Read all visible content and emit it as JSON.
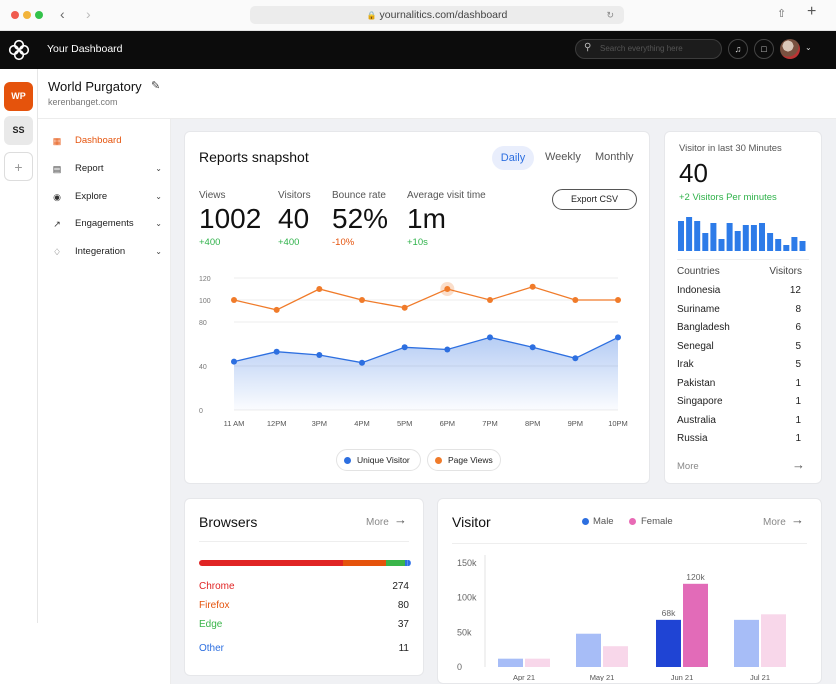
{
  "browser": {
    "url": "yournalitics.com/dashboard"
  },
  "app": {
    "title": "Your Dashboard",
    "search_placeholder": "Search everything here"
  },
  "workspaces": [
    {
      "label": "WP"
    },
    {
      "label": "SS"
    },
    {
      "label": "+"
    }
  ],
  "site": {
    "name": "World Purgatory",
    "domain": "kerenbanget.com"
  },
  "sidebar": {
    "items": [
      {
        "label": "Dashboard",
        "icon": "grid-icon",
        "active": true
      },
      {
        "label": "Report",
        "icon": "report-icon"
      },
      {
        "label": "Explore",
        "icon": "compass-icon"
      },
      {
        "label": "Engagements",
        "icon": "chart-line-icon"
      },
      {
        "label": "Integeration",
        "icon": "layers-icon"
      }
    ]
  },
  "snapshot": {
    "title": "Reports snapshot",
    "tabs": [
      "Daily",
      "Weekly",
      "Monthly"
    ],
    "active_tab": "Daily",
    "export_label": "Export CSV",
    "stats": [
      {
        "label": "Views",
        "value": "1002",
        "delta": "+400",
        "trend": "up"
      },
      {
        "label": "Visitors",
        "value": "40",
        "delta": "+400",
        "trend": "up"
      },
      {
        "label": "Bounce rate",
        "value": "52%",
        "delta": "-10%",
        "trend": "down"
      },
      {
        "label": "Average visit time",
        "value": "1m",
        "delta": "+10s",
        "trend": "up"
      }
    ],
    "legend": {
      "unique": "Unique Visitor",
      "page": "Page Views"
    }
  },
  "live": {
    "title": "Visitor in last 30 Minutes",
    "count": "40",
    "rate": "+2 Visitors Per minutes",
    "bars": [
      30,
      34,
      30,
      18,
      28,
      12,
      28,
      20,
      26,
      26,
      28,
      18,
      12,
      6,
      14,
      10
    ],
    "countries_header": "Countries",
    "visitors_header": "Visitors",
    "countries": [
      {
        "name": "Indonesia",
        "value": "12"
      },
      {
        "name": "Suriname",
        "value": "8"
      },
      {
        "name": "Bangladesh",
        "value": "6"
      },
      {
        "name": "Senegal",
        "value": "5"
      },
      {
        "name": "Irak",
        "value": "5"
      },
      {
        "name": "Pakistan",
        "value": "1"
      },
      {
        "name": "Singapore",
        "value": "1"
      },
      {
        "name": "Australia",
        "value": "1"
      },
      {
        "name": "Russia",
        "value": "1"
      }
    ],
    "more_label": "More"
  },
  "browsers": {
    "title": "Browsers",
    "more_label": "More",
    "items": [
      {
        "name": "Chrome",
        "value": "274",
        "color": "#e02424"
      },
      {
        "name": "Firefox",
        "value": "80",
        "color": "#e5530c"
      },
      {
        "name": "Edge",
        "value": "37",
        "color": "#3ab54a"
      },
      {
        "name": "Other",
        "value": "11",
        "color": "#2d6fe0"
      }
    ]
  },
  "visitor": {
    "title": "Visitor",
    "legend_male": "Male",
    "legend_female": "Female",
    "more_label": "More"
  },
  "chart_data": [
    {
      "type": "line",
      "x": [
        "11 AM",
        "12PM",
        "3PM",
        "4PM",
        "5PM",
        "6PM",
        "7PM",
        "8PM",
        "9PM",
        "10PM"
      ],
      "ylim": [
        0,
        120
      ],
      "yticks": [
        "0",
        "40",
        "80",
        "100",
        "120"
      ],
      "series": [
        {
          "name": "Page Views",
          "color": "#f07b2a",
          "values": [
            100,
            91,
            110,
            100,
            93,
            110,
            100,
            112,
            100,
            100
          ]
        },
        {
          "name": "Unique Visitor",
          "color": "#2d6fe0",
          "values": [
            44,
            53,
            50,
            43,
            57,
            55,
            66,
            57,
            47,
            66
          ]
        }
      ]
    },
    {
      "type": "bar",
      "categories": [
        "Apr 21",
        "May 21",
        "Jun 21",
        "Jul 21"
      ],
      "yticks": [
        "0",
        "50k",
        "100k",
        "150k"
      ],
      "ylim": [
        0,
        150000
      ],
      "series": [
        {
          "name": "Male",
          "values": [
            12000,
            48000,
            68000,
            68000
          ]
        },
        {
          "name": "Female",
          "values": [
            12000,
            30000,
            120000,
            76000
          ]
        }
      ],
      "data_labels": {
        "male_jun": "68k",
        "female_jun": "120k"
      }
    }
  ]
}
